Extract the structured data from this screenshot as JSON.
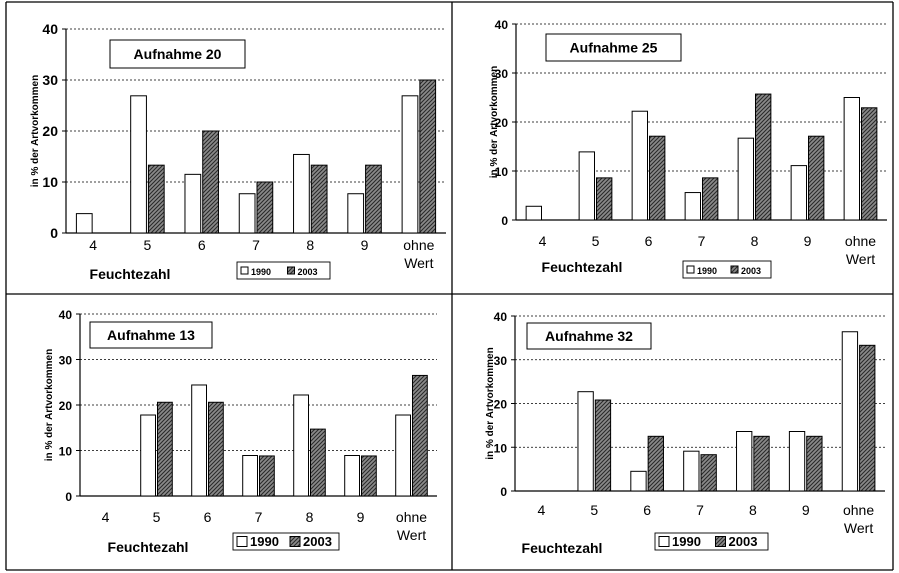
{
  "figure": {
    "panels": [
      {
        "title": "Aufnahme 20",
        "ylabel": "in % der Artvorkommen",
        "xlabel": "Feuchtezahl",
        "legend": [
          "1990",
          "2003"
        ]
      },
      {
        "title": "Aufnahme 25",
        "ylabel": "in % der Artvorkommen",
        "xlabel": "Feuchtezahl",
        "legend": [
          "1990",
          "2003"
        ]
      },
      {
        "title": "Aufnahme 13",
        "ylabel": "in % der Artvorkommen",
        "xlabel": "Feuchtezahl",
        "legend": [
          "1990",
          "2003"
        ]
      },
      {
        "title": "Aufnahme 32",
        "ylabel": "in % der Artvorkommen",
        "xlabel": "Feuchtezahl",
        "legend": [
          "1990",
          "2003"
        ]
      }
    ]
  },
  "chart_data": [
    {
      "type": "bar",
      "title": "Aufnahme 20",
      "xlabel": "Feuchtezahl",
      "ylabel": "in % der Artvorkommen",
      "categories": [
        "4",
        "5",
        "6",
        "7",
        "8",
        "9",
        "ohne Wert"
      ],
      "series": [
        {
          "name": "1990",
          "values": [
            3.8,
            26.9,
            11.5,
            7.7,
            15.4,
            7.7,
            26.9
          ]
        },
        {
          "name": "2003",
          "values": [
            0,
            13.3,
            20,
            10,
            13.3,
            13.3,
            30
          ]
        }
      ],
      "ylim": [
        0,
        40
      ],
      "yticks": [
        0,
        10,
        20,
        30,
        40
      ],
      "grid": true,
      "legend": "bottom"
    },
    {
      "type": "bar",
      "title": "Aufnahme 25",
      "xlabel": "Feuchtezahl",
      "ylabel": "in % der Artvorkommen",
      "categories": [
        "4",
        "5",
        "6",
        "7",
        "8",
        "9",
        "ohne Wert"
      ],
      "series": [
        {
          "name": "1990",
          "values": [
            2.8,
            13.9,
            22.2,
            5.6,
            16.7,
            11.1,
            25
          ]
        },
        {
          "name": "2003",
          "values": [
            0,
            8.6,
            17.1,
            8.6,
            25.7,
            17.1,
            22.9
          ]
        }
      ],
      "ylim": [
        0,
        40
      ],
      "yticks": [
        0,
        10,
        20,
        30,
        40
      ],
      "grid": true,
      "legend": "bottom"
    },
    {
      "type": "bar",
      "title": "Aufnahme 13",
      "xlabel": "Feuchtezahl",
      "ylabel": "in % der Artvorkommen",
      "categories": [
        "4",
        "5",
        "6",
        "7",
        "8",
        "9",
        "ohne Wert"
      ],
      "series": [
        {
          "name": "1990",
          "values": [
            0,
            17.8,
            24.4,
            8.9,
            22.2,
            8.9,
            17.8
          ]
        },
        {
          "name": "2003",
          "values": [
            0,
            20.6,
            20.6,
            8.8,
            14.7,
            8.8,
            26.5
          ]
        }
      ],
      "ylim": [
        0,
        40
      ],
      "yticks": [
        0,
        10,
        20,
        30,
        40
      ],
      "grid": true,
      "legend": "bottom"
    },
    {
      "type": "bar",
      "title": "Aufnahme 32",
      "xlabel": "Feuchtezahl",
      "ylabel": "in % der Artvorkommen",
      "categories": [
        "4",
        "5",
        "6",
        "7",
        "8",
        "9",
        "ohne Wert"
      ],
      "series": [
        {
          "name": "1990",
          "values": [
            0,
            22.7,
            4.5,
            9.1,
            13.6,
            13.6,
            36.4
          ]
        },
        {
          "name": "2003",
          "values": [
            0,
            20.8,
            12.5,
            8.3,
            12.5,
            12.5,
            33.3
          ]
        }
      ],
      "ylim": [
        0,
        40
      ],
      "yticks": [
        0,
        10,
        20,
        30,
        40
      ],
      "grid": true,
      "legend": "bottom"
    }
  ]
}
